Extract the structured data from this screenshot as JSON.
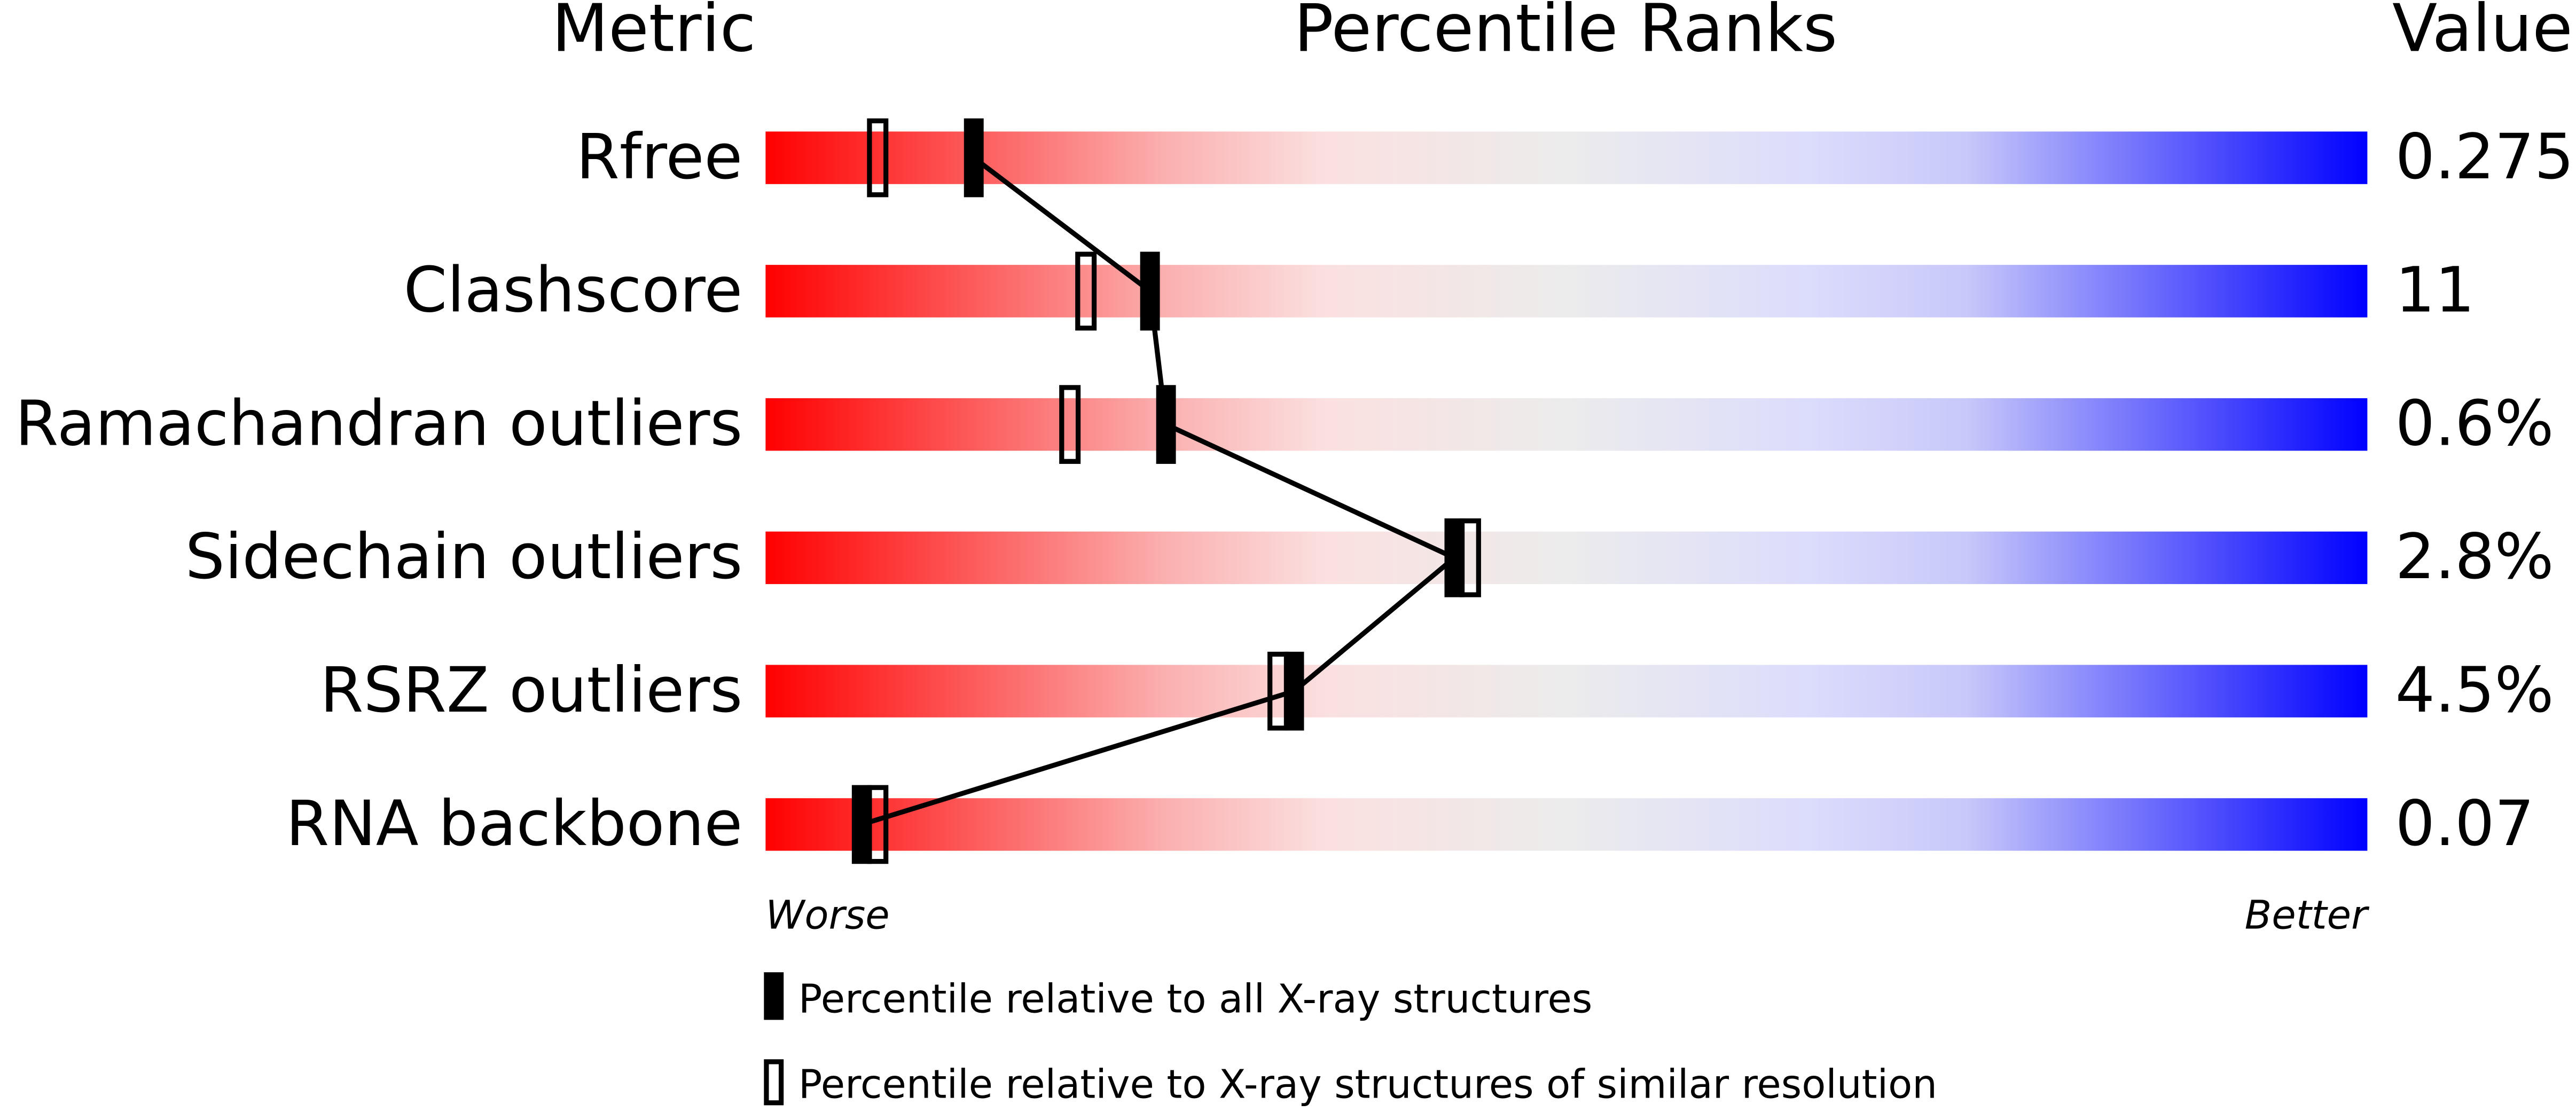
{
  "chart_data": {
    "type": "percentile",
    "headers": [
      "Metric",
      "Percentile Ranks",
      "Value"
    ],
    "categories": [
      "Rfree",
      "Clashscore",
      "Ramachandran outliers",
      "Sidechain outliers",
      "RSRZ outliers",
      "RNA backbone"
    ],
    "values": [
      0.275,
      11,
      0.6,
      2.8,
      4.5,
      0.07
    ],
    "value_labels": [
      "0.275",
      "11",
      "0.6%",
      "2.8%",
      "4.5%",
      "0.07"
    ],
    "xlim": [
      0,
      100
    ],
    "x_label_low": "Worse",
    "x_label_high": "Better",
    "series": [
      {
        "name": "Percentile relative to all X-ray structures",
        "color": "#000000",
        "style": "filled",
        "values": [
          13,
          24,
          25,
          43,
          33,
          6
        ]
      },
      {
        "name": "Percentile relative to X-ray structures of similar resolution",
        "color": "#000000",
        "style": "hollow",
        "values": [
          7,
          20,
          19,
          44,
          32,
          7
        ]
      }
    ]
  }
}
